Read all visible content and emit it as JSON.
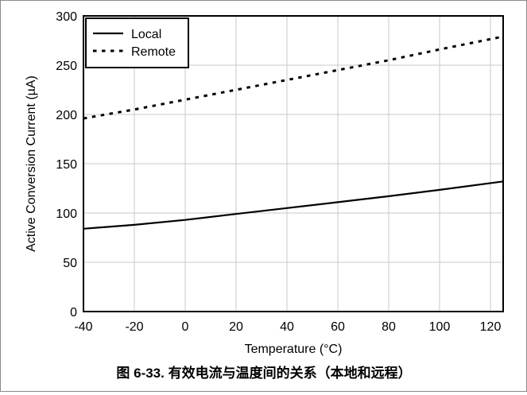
{
  "figure_caption": "图 6-33. 有效电流与温度间的关系（本地和远程）",
  "chart_data": {
    "type": "line",
    "title": "",
    "xlabel": "Temperature (°C)",
    "ylabel": "Active Conversion Current (µA)",
    "xlim": [
      -40,
      125
    ],
    "ylim": [
      0,
      300
    ],
    "x_ticks": [
      -40,
      -20,
      0,
      20,
      40,
      60,
      80,
      100,
      120
    ],
    "y_ticks": [
      0,
      50,
      100,
      150,
      200,
      250,
      300
    ],
    "grid": true,
    "legend_position": "top-left",
    "series": [
      {
        "name": "Local",
        "style": "solid",
        "color": "#000000",
        "x": [
          -40,
          -20,
          0,
          20,
          40,
          60,
          80,
          100,
          125
        ],
        "y": [
          84,
          88,
          93,
          99,
          105,
          111,
          117,
          123.5,
          132
        ]
      },
      {
        "name": "Remote",
        "style": "dashed",
        "color": "#000000",
        "x": [
          -40,
          -20,
          0,
          20,
          40,
          60,
          80,
          100,
          125
        ],
        "y": [
          196,
          205,
          215,
          225,
          235,
          245,
          255,
          266,
          279
        ]
      }
    ]
  }
}
